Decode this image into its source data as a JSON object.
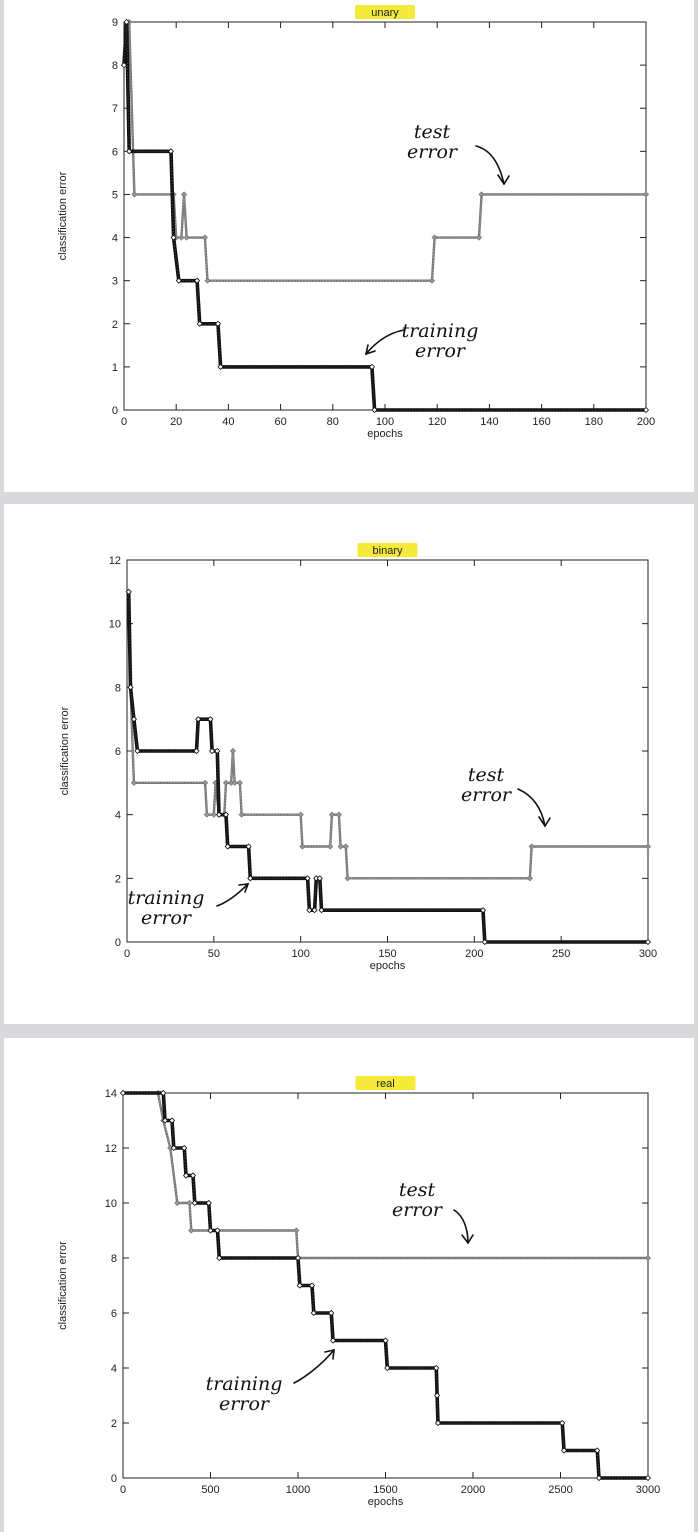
{
  "chart_data": [
    {
      "type": "line",
      "title": "unary",
      "xlabel": "epochs",
      "ylabel": "classification error",
      "xlim": [
        0,
        200
      ],
      "ylim": [
        0,
        9
      ],
      "xticks": [
        0,
        20,
        40,
        60,
        80,
        100,
        120,
        140,
        160,
        180,
        200
      ],
      "yticks": [
        0,
        1,
        2,
        3,
        4,
        5,
        6,
        7,
        8,
        9
      ],
      "grid": false,
      "series": [
        {
          "role": "training",
          "points": [
            [
              0,
              8
            ],
            [
              1,
              9
            ],
            [
              2,
              6
            ],
            [
              18,
              6
            ],
            [
              19,
              4
            ],
            [
              21,
              3
            ],
            [
              28,
              3
            ],
            [
              29,
              2
            ],
            [
              36,
              2
            ],
            [
              37,
              1
            ],
            [
              95,
              1
            ],
            [
              96,
              0
            ],
            [
              200,
              0
            ]
          ]
        },
        {
          "role": "test",
          "points": [
            [
              0,
              8
            ],
            [
              2,
              9
            ],
            [
              4,
              5
            ],
            [
              19,
              5
            ],
            [
              20,
              4
            ],
            [
              22,
              4
            ],
            [
              23,
              5
            ],
            [
              24,
              4
            ],
            [
              31,
              4
            ],
            [
              32,
              3
            ],
            [
              118,
              3
            ],
            [
              119,
              4
            ],
            [
              136,
              4
            ],
            [
              137,
              5
            ],
            [
              200,
              5
            ]
          ]
        }
      ],
      "annotations": [
        {
          "text": [
            "test",
            "error"
          ],
          "points_to": "test"
        },
        {
          "text": [
            "training",
            "error"
          ],
          "points_to": "training"
        }
      ]
    },
    {
      "type": "line",
      "title": "binary",
      "xlabel": "epochs",
      "ylabel": "classification error",
      "xlim": [
        0,
        300
      ],
      "ylim": [
        0,
        12
      ],
      "xticks": [
        0,
        50,
        100,
        150,
        200,
        250,
        300
      ],
      "yticks": [
        0,
        2,
        4,
        6,
        8,
        10,
        12
      ],
      "grid": false,
      "series": [
        {
          "role": "training",
          "points": [
            [
              1,
              11
            ],
            [
              2,
              8
            ],
            [
              4,
              7
            ],
            [
              6,
              6
            ],
            [
              40,
              6
            ],
            [
              41,
              7
            ],
            [
              48,
              7
            ],
            [
              49,
              6
            ],
            [
              52,
              6
            ],
            [
              53,
              4
            ],
            [
              57,
              4
            ],
            [
              58,
              3
            ],
            [
              70,
              3
            ],
            [
              71,
              2
            ],
            [
              104,
              2
            ],
            [
              105,
              1
            ],
            [
              108,
              1
            ],
            [
              109,
              2
            ],
            [
              111,
              2
            ],
            [
              112,
              1
            ],
            [
              205,
              1
            ],
            [
              206,
              0
            ],
            [
              300,
              0
            ]
          ]
        },
        {
          "role": "test",
          "points": [
            [
              1,
              11
            ],
            [
              2,
              8
            ],
            [
              4,
              5
            ],
            [
              45,
              5
            ],
            [
              46,
              4
            ],
            [
              50,
              4
            ],
            [
              51,
              5
            ],
            [
              53,
              4
            ],
            [
              56,
              4
            ],
            [
              57,
              5
            ],
            [
              60,
              5
            ],
            [
              61,
              6
            ],
            [
              62,
              5
            ],
            [
              65,
              5
            ],
            [
              66,
              4
            ],
            [
              100,
              4
            ],
            [
              101,
              3
            ],
            [
              117,
              3
            ],
            [
              118,
              4
            ],
            [
              122,
              4
            ],
            [
              123,
              3
            ],
            [
              126,
              3
            ],
            [
              127,
              2
            ],
            [
              232,
              2
            ],
            [
              233,
              3
            ],
            [
              300,
              3
            ]
          ]
        }
      ],
      "annotations": [
        {
          "text": [
            "test",
            "error"
          ],
          "points_to": "test"
        },
        {
          "text": [
            "training",
            "error"
          ],
          "points_to": "training"
        }
      ]
    },
    {
      "type": "line",
      "title": "real",
      "xlabel": "epochs",
      "ylabel": "classification error",
      "xlim": [
        0,
        3000
      ],
      "ylim": [
        0,
        14
      ],
      "xticks": [
        0,
        500,
        1000,
        1500,
        2000,
        2500,
        3000
      ],
      "yticks": [
        0,
        2,
        4,
        6,
        8,
        10,
        12,
        14
      ],
      "grid": false,
      "series": [
        {
          "role": "training",
          "points": [
            [
              0,
              14
            ],
            [
              230,
              14
            ],
            [
              240,
              13
            ],
            [
              280,
              13
            ],
            [
              290,
              12
            ],
            [
              350,
              12
            ],
            [
              360,
              11
            ],
            [
              400,
              11
            ],
            [
              410,
              10
            ],
            [
              490,
              10
            ],
            [
              500,
              9
            ],
            [
              540,
              9
            ],
            [
              550,
              8
            ],
            [
              1000,
              8
            ],
            [
              1010,
              7
            ],
            [
              1080,
              7
            ],
            [
              1090,
              6
            ],
            [
              1190,
              6
            ],
            [
              1200,
              5
            ],
            [
              1500,
              5
            ],
            [
              1510,
              4
            ],
            [
              1790,
              4
            ],
            [
              1795,
              3
            ],
            [
              1800,
              2
            ],
            [
              2510,
              2
            ],
            [
              2520,
              1
            ],
            [
              2710,
              1
            ],
            [
              2720,
              0
            ],
            [
              3000,
              0
            ]
          ]
        },
        {
          "role": "test",
          "points": [
            [
              0,
              14
            ],
            [
              200,
              14
            ],
            [
              230,
              13
            ],
            [
              270,
              12
            ],
            [
              310,
              10
            ],
            [
              380,
              10
            ],
            [
              390,
              9
            ],
            [
              990,
              9
            ],
            [
              1000,
              8
            ],
            [
              3000,
              8
            ]
          ]
        }
      ],
      "annotations": [
        {
          "text": [
            "test",
            "error"
          ],
          "points_to": "test"
        },
        {
          "text": [
            "training",
            "error"
          ],
          "points_to": "training"
        }
      ]
    }
  ]
}
